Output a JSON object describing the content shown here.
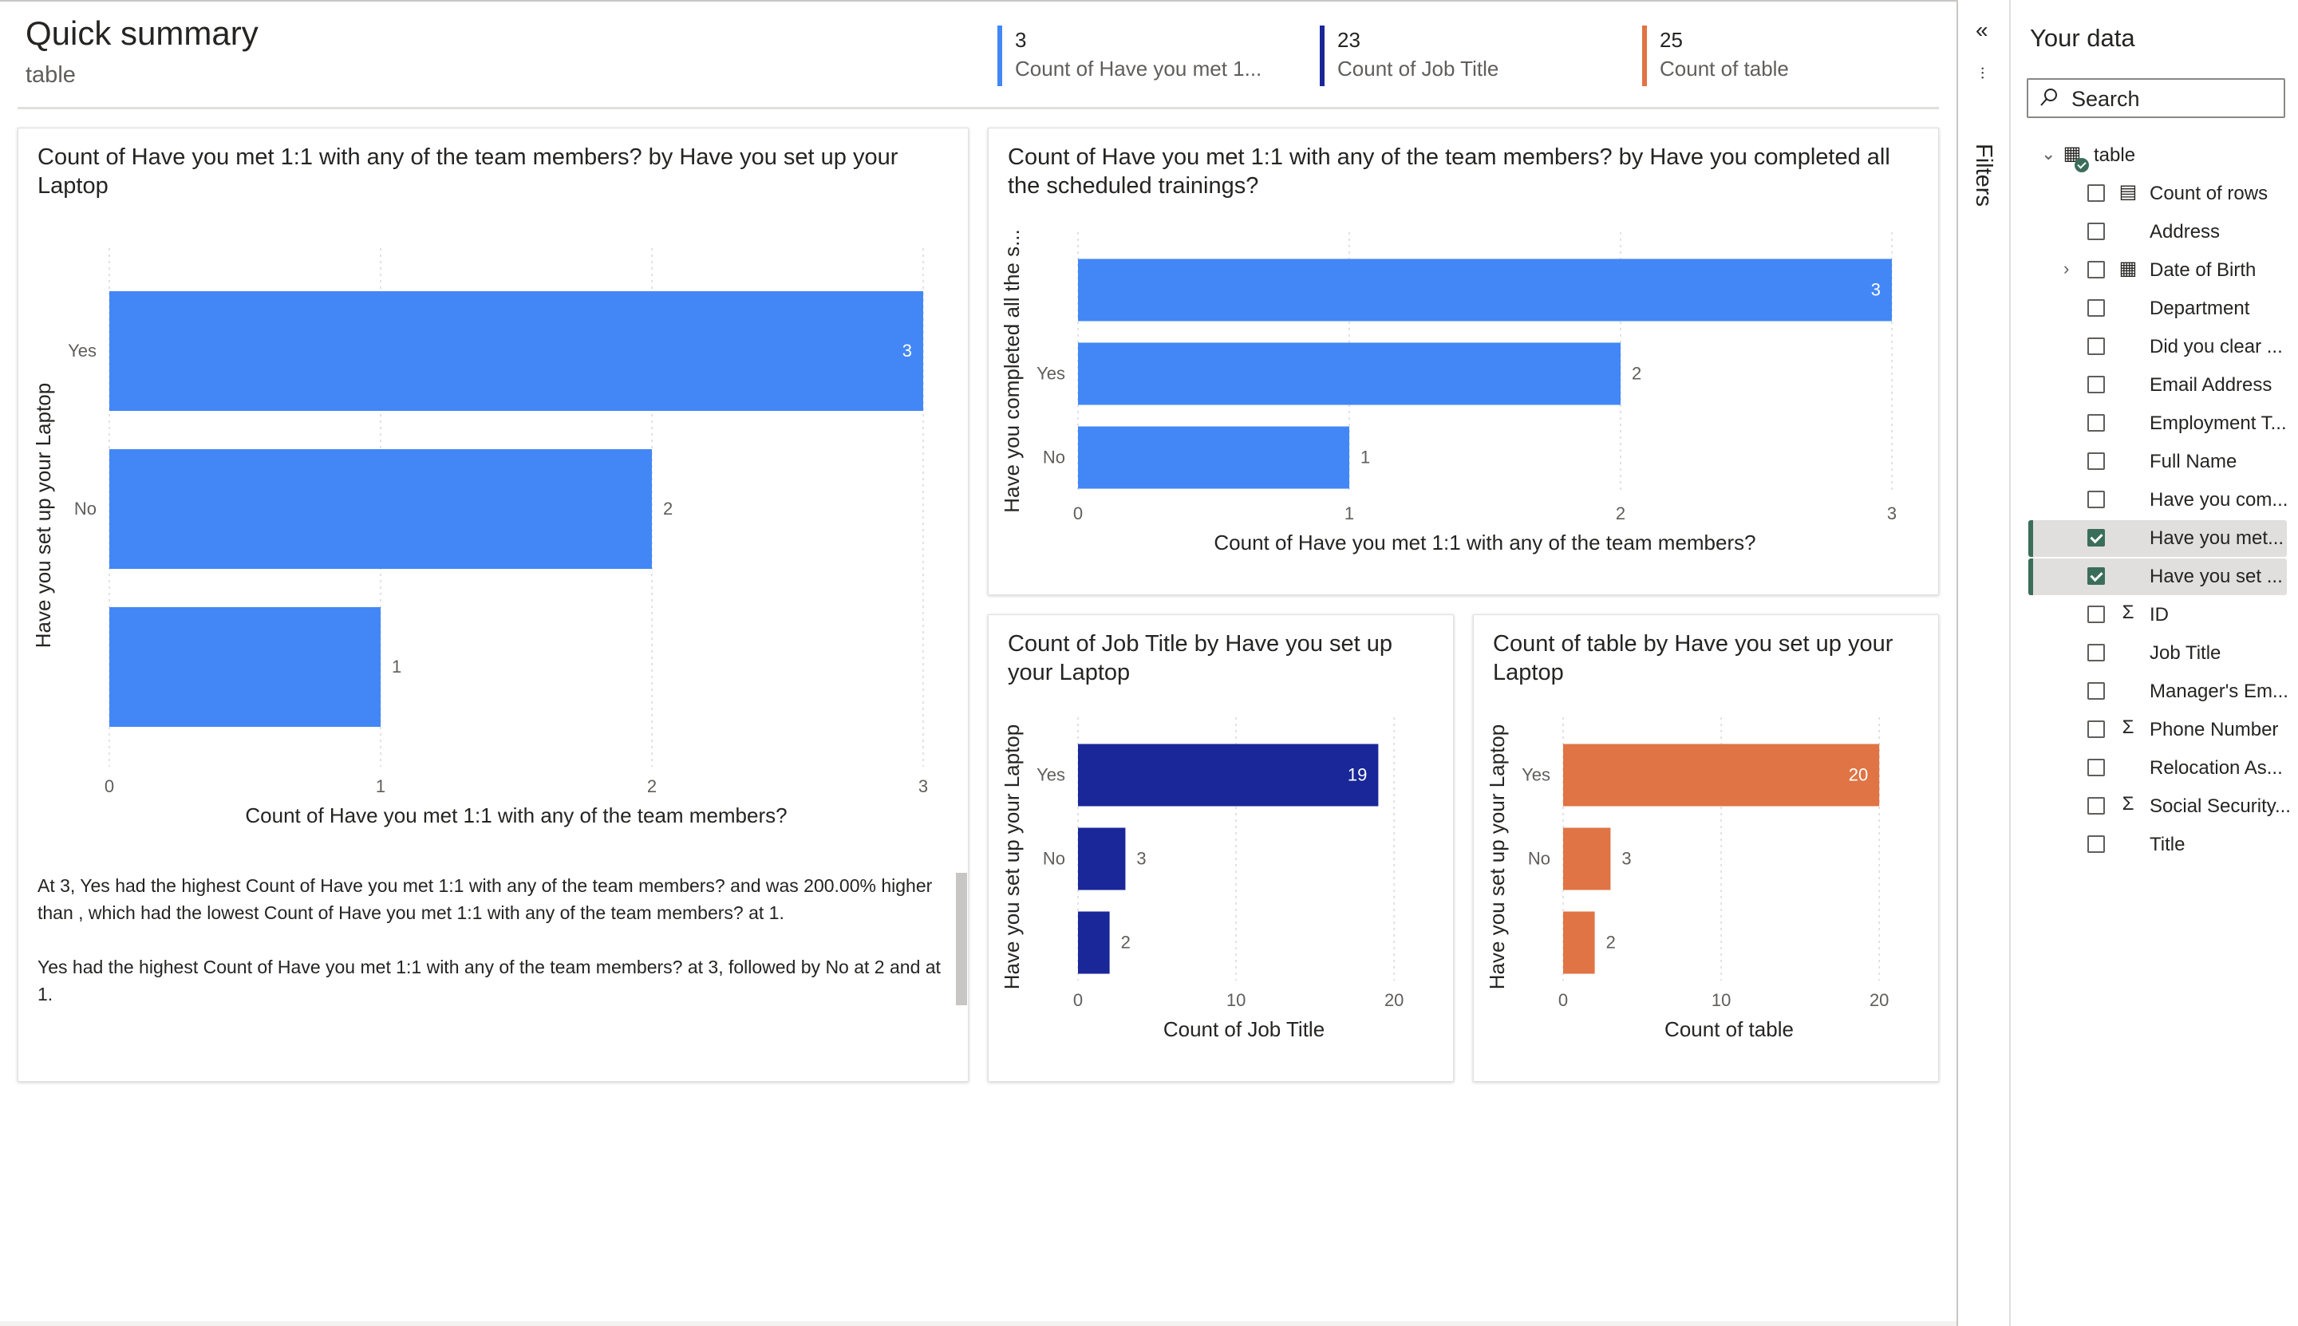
{
  "page": {
    "title": "Quick summary",
    "subtitle": "table"
  },
  "kpis": [
    {
      "value": "3",
      "label": "Count of Have you met 1...",
      "color": "#4287f5"
    },
    {
      "value": "23",
      "label": "Count of Job Title",
      "color": "#1a2799"
    },
    {
      "value": "25",
      "label": "Count of table",
      "color": "#e07444"
    }
  ],
  "cards": {
    "main": {
      "title": "Count of Have you met 1:1 with any of the team members? by Have you set up your Laptop"
    },
    "trainings": {
      "title": "Count of Have you met 1:1 with any of the team members? by Have you completed all the scheduled trainings?"
    },
    "jobtitle": {
      "title": "Count of Job Title by Have you set up your Laptop"
    },
    "table": {
      "title": "Count of table by Have you set up your Laptop"
    }
  },
  "narrative": {
    "p1": "At 3, Yes had the highest Count of Have you met 1:1 with any of the team members? and was 200.00% higher than , which had the lowest Count of Have you met 1:1 with any of the team members? at 1.",
    "p2": "Yes had the highest Count of Have you met 1:1 with any of the team members? at 3, followed by No at 2 and  at 1."
  },
  "chart_data": [
    {
      "type": "bar",
      "orientation": "horizontal",
      "id": "main",
      "categories": [
        "Yes",
        "No",
        ""
      ],
      "values": [
        3,
        2,
        1
      ],
      "xlabel": "Count of Have you met 1:1 with any of the team members?",
      "ylabel": "Have you set up your Laptop",
      "xlim": [
        0,
        3
      ],
      "xticks": [
        0,
        1,
        2,
        3
      ],
      "color": "#4287f5"
    },
    {
      "type": "bar",
      "orientation": "horizontal",
      "id": "trainings",
      "categories": [
        "",
        "Yes",
        "No"
      ],
      "values": [
        3,
        2,
        1
      ],
      "xlabel": "Count of Have you met 1:1 with any of the team members?",
      "ylabel": "Have you completed all the s...",
      "xlim": [
        0,
        3
      ],
      "xticks": [
        0,
        1,
        2,
        3
      ],
      "color": "#4287f5"
    },
    {
      "type": "bar",
      "orientation": "horizontal",
      "id": "jobtitle",
      "categories": [
        "Yes",
        "No",
        ""
      ],
      "values": [
        19,
        3,
        2
      ],
      "xlabel": "Count of Job Title",
      "ylabel": "Have you set up your Laptop",
      "xlim": [
        0,
        21
      ],
      "xticks": [
        0,
        10,
        20
      ],
      "color": "#1a2799"
    },
    {
      "type": "bar",
      "orientation": "horizontal",
      "id": "table",
      "categories": [
        "Yes",
        "No",
        ""
      ],
      "values": [
        20,
        3,
        2
      ],
      "xlabel": "Count of table",
      "ylabel": "Have you set up your Laptop",
      "xlim": [
        0,
        21
      ],
      "xticks": [
        0,
        10,
        20
      ],
      "color": "#e07444"
    }
  ],
  "filters": {
    "label": "Filters",
    "collapse_icon": "double-chevron-left-icon"
  },
  "data_pane": {
    "title": "Your data",
    "search_placeholder": "Search",
    "table_name": "table",
    "fields": [
      {
        "label": "Count of rows",
        "icon": "calculator-icon",
        "checked": false,
        "expand": false
      },
      {
        "label": "Address",
        "icon": "",
        "checked": false,
        "expand": false
      },
      {
        "label": "Date of Birth",
        "icon": "calendar-icon",
        "checked": false,
        "expand": true
      },
      {
        "label": "Department",
        "icon": "",
        "checked": false,
        "expand": false
      },
      {
        "label": "Did you clear ...",
        "icon": "",
        "checked": false,
        "expand": false
      },
      {
        "label": "Email Address",
        "icon": "",
        "checked": false,
        "expand": false
      },
      {
        "label": "Employment T...",
        "icon": "",
        "checked": false,
        "expand": false
      },
      {
        "label": "Full Name",
        "icon": "",
        "checked": false,
        "expand": false
      },
      {
        "label": "Have you com...",
        "icon": "",
        "checked": false,
        "expand": false
      },
      {
        "label": "Have you met...",
        "icon": "",
        "checked": true,
        "expand": false
      },
      {
        "label": "Have you set ...",
        "icon": "",
        "checked": true,
        "expand": false
      },
      {
        "label": "ID",
        "icon": "sigma-icon",
        "checked": false,
        "expand": false
      },
      {
        "label": "Job Title",
        "icon": "",
        "checked": false,
        "expand": false
      },
      {
        "label": "Manager's Em...",
        "icon": "",
        "checked": false,
        "expand": false
      },
      {
        "label": "Phone Number",
        "icon": "sigma-icon",
        "checked": false,
        "expand": false
      },
      {
        "label": "Relocation As...",
        "icon": "",
        "checked": false,
        "expand": false
      },
      {
        "label": "Social Security...",
        "icon": "sigma-icon",
        "checked": false,
        "expand": false
      },
      {
        "label": "Title",
        "icon": "",
        "checked": false,
        "expand": false
      }
    ]
  }
}
